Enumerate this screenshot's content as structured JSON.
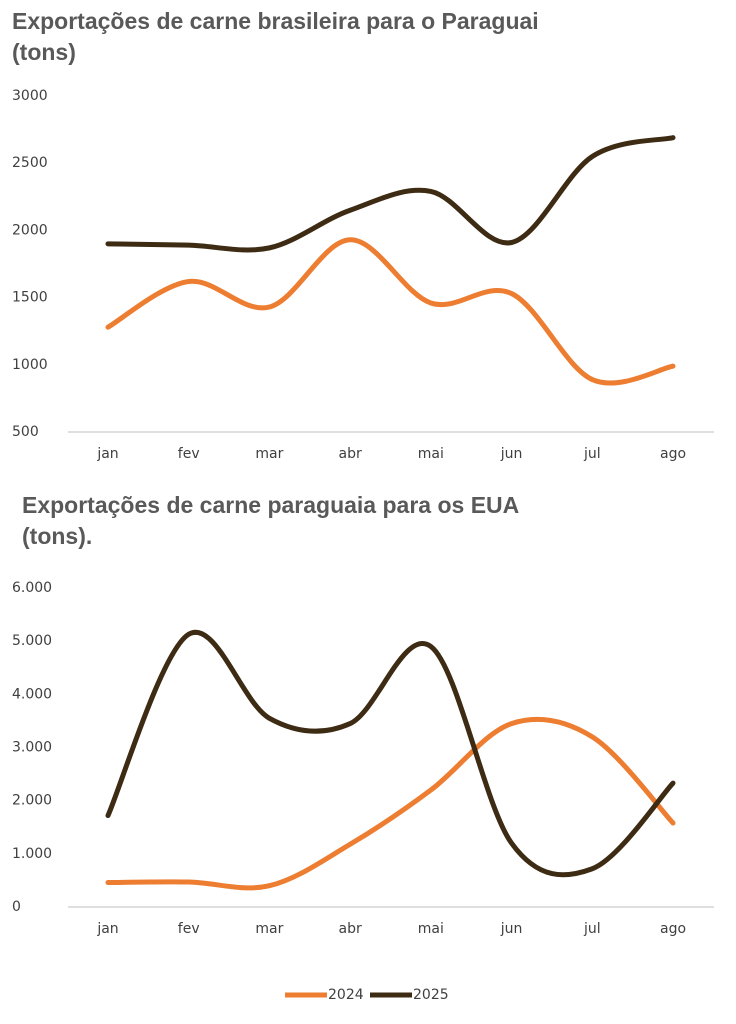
{
  "chart_data": [
    {
      "type": "line",
      "title": "Exportações de carne brasileira para o Paraguai (tons)",
      "categories": [
        "jan",
        "fev",
        "mar",
        "abr",
        "mai",
        "jun",
        "jul",
        "ago"
      ],
      "series": [
        {
          "color": "#ed7d31",
          "values": [
            1280,
            1620,
            1430,
            1930,
            1460,
            1530,
            890,
            990
          ]
        },
        {
          "color": "#3d2b14",
          "values": [
            1900,
            1890,
            1870,
            2150,
            2290,
            1910,
            2550,
            2690
          ]
        }
      ],
      "ylim": [
        500,
        3000
      ],
      "yticks": [
        500,
        1000,
        1500,
        2000,
        2500,
        3000
      ]
    },
    {
      "type": "line",
      "title": "Exportações de carne paraguaia para os EUA (tons).",
      "categories": [
        "jan",
        "fev",
        "mar",
        "abr",
        "mai",
        "jun",
        "jul",
        "ago"
      ],
      "series": [
        {
          "name": "2024",
          "color": "#ed7d31",
          "values": [
            460,
            470,
            400,
            1180,
            2200,
            3450,
            3200,
            1580
          ]
        },
        {
          "name": "2025",
          "color": "#3d2b14",
          "values": [
            1720,
            5130,
            3550,
            3450,
            4900,
            1200,
            720,
            2330
          ]
        }
      ],
      "ylim": [
        0,
        6000
      ],
      "yticks": [
        0,
        {
          "value": 1000,
          "label": "1.000"
        },
        {
          "value": 2000,
          "label": "2.000"
        },
        {
          "value": 3000,
          "label": "3.000"
        },
        {
          "value": 4000,
          "label": "4.000"
        },
        {
          "value": 5000,
          "label": "5.000"
        },
        {
          "value": 6000,
          "label": "6.000"
        }
      ],
      "legend": "bottom"
    }
  ]
}
